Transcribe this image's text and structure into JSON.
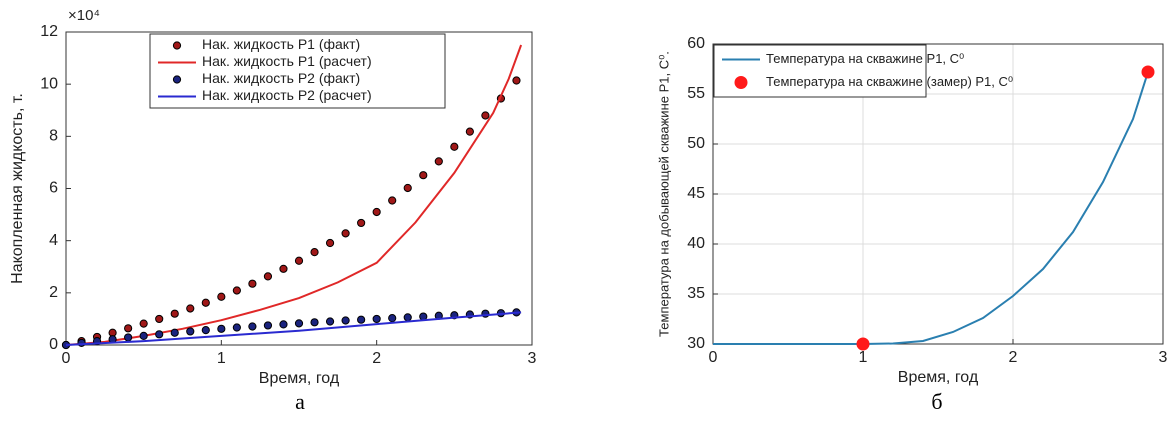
{
  "chart_data": [
    {
      "type": "line",
      "xlabel": "Время, год",
      "ylabel": "Накопленная жидкость, т.",
      "exponent": "×10⁴",
      "caption": "а",
      "xlim": [
        0,
        3
      ],
      "xticks": [
        0,
        1,
        2,
        3
      ],
      "ylim": [
        0,
        12
      ],
      "yticks": [
        0,
        2,
        4,
        6,
        8,
        10,
        12
      ],
      "grid": false,
      "legend": "top",
      "series": [
        {
          "name": "Нак. жидкость P1 (факт)",
          "style": "markers",
          "color": "#a01818",
          "x": [
            0,
            0.1,
            0.2,
            0.3,
            0.4,
            0.5,
            0.6,
            0.7,
            0.8,
            0.9,
            1.0,
            1.1,
            1.2,
            1.3,
            1.4,
            1.5,
            1.6,
            1.7,
            1.8,
            1.9,
            2.0,
            2.1,
            2.2,
            2.3,
            2.4,
            2.5,
            2.6,
            2.7,
            2.8,
            2.9
          ],
          "values": [
            0,
            0.15,
            0.31,
            0.47,
            0.64,
            0.82,
            1.0,
            1.2,
            1.4,
            1.62,
            1.85,
            2.09,
            2.35,
            2.63,
            2.92,
            3.23,
            3.56,
            3.91,
            4.28,
            4.68,
            5.1,
            5.54,
            6.02,
            6.51,
            7.04,
            7.6,
            8.18,
            8.8,
            9.45,
            10.14
          ]
        },
        {
          "name": "Нак. жидкость P1 (расчет)",
          "style": "line",
          "color": "#e02828",
          "x": [
            0,
            0.25,
            0.5,
            0.75,
            1.0,
            1.25,
            1.5,
            1.75,
            2.0,
            2.25,
            2.5,
            2.75,
            2.85,
            2.93
          ],
          "values": [
            0,
            0.12,
            0.35,
            0.62,
            0.95,
            1.35,
            1.8,
            2.4,
            3.15,
            4.7,
            6.6,
            8.9,
            10.2,
            11.5
          ]
        },
        {
          "name": "Нак. жидкость P2 (факт)",
          "style": "markers",
          "color": "#1a237e",
          "x": [
            0,
            0.1,
            0.2,
            0.3,
            0.4,
            0.5,
            0.6,
            0.7,
            0.8,
            0.9,
            1.0,
            1.1,
            1.2,
            1.3,
            1.4,
            1.5,
            1.6,
            1.7,
            1.8,
            1.9,
            2.0,
            2.1,
            2.2,
            2.3,
            2.4,
            2.5,
            2.6,
            2.7,
            2.8,
            2.9
          ],
          "values": [
            0,
            0.08,
            0.15,
            0.22,
            0.29,
            0.35,
            0.41,
            0.47,
            0.52,
            0.57,
            0.62,
            0.67,
            0.71,
            0.75,
            0.79,
            0.83,
            0.87,
            0.9,
            0.94,
            0.97,
            1.0,
            1.03,
            1.06,
            1.09,
            1.12,
            1.14,
            1.17,
            1.2,
            1.22,
            1.25
          ]
        },
        {
          "name": "Нак. жидкость P2 (расчет)",
          "style": "line",
          "color": "#2a2ad0",
          "x": [
            0,
            0.5,
            1.0,
            1.5,
            2.0,
            2.5,
            2.93
          ],
          "values": [
            0,
            0.15,
            0.35,
            0.55,
            0.8,
            1.05,
            1.25
          ]
        }
      ]
    },
    {
      "type": "line",
      "xlabel": "Время, год",
      "ylabel": "Температура на добывающей скважине P1, C⁰.",
      "caption": "б",
      "xlim": [
        0,
        3
      ],
      "xticks": [
        0,
        1,
        2,
        3
      ],
      "ylim": [
        30,
        60
      ],
      "yticks": [
        30,
        35,
        40,
        45,
        50,
        55,
        60
      ],
      "grid": true,
      "legend": "top-left",
      "series": [
        {
          "name": "Температура на скважине P1, C⁰",
          "style": "line",
          "color": "#2a7fb0",
          "x": [
            0,
            1.0,
            1.2,
            1.4,
            1.6,
            1.8,
            2.0,
            2.2,
            2.4,
            2.6,
            2.8,
            2.9
          ],
          "values": [
            30,
            30,
            30.05,
            30.3,
            31.2,
            32.6,
            34.8,
            37.5,
            41.2,
            46.2,
            52.5,
            57.2
          ]
        },
        {
          "name": "Температура на скважине (замер) P1, C⁰",
          "style": "markers",
          "color": "#ff1a1a",
          "x": [
            1.0,
            2.9
          ],
          "values": [
            30,
            57.2
          ]
        }
      ]
    }
  ]
}
